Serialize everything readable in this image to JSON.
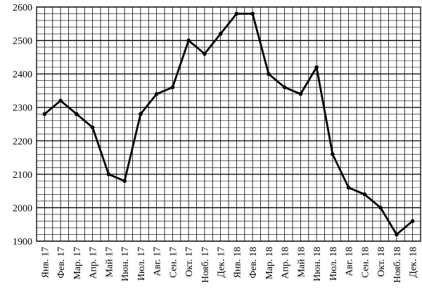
{
  "chart_data": {
    "type": "line",
    "categories": [
      "Янв. 17",
      "Фев. 17",
      "Мар. 17",
      "Апр. 17",
      "Май 17",
      "Июн. 17",
      "Июл. 17",
      "Авг. 17",
      "Сен. 17",
      "Окт. 17",
      "Нояб. 17",
      "Дек. 17",
      "Янв. 18",
      "Фев. 18",
      "Мар. 18",
      "Апр. 18",
      "Май 18",
      "Июн. 18",
      "Июл. 18",
      "Авг. 18",
      "Сен. 18",
      "Окт. 18",
      "Нояб. 18",
      "Дек. 18"
    ],
    "values": [
      2280,
      2320,
      2280,
      2240,
      2100,
      2080,
      2280,
      2340,
      2360,
      2500,
      2460,
      2520,
      2580,
      2580,
      2400,
      2360,
      2340,
      2420,
      2160,
      2060,
      2040,
      2000,
      1920,
      1960
    ],
    "color": "#000000",
    "ylim": [
      1900,
      2600
    ],
    "yticks": [
      1900,
      2000,
      2100,
      2200,
      2300,
      2400,
      2500,
      2600
    ],
    "y_minor_ticks": [
      1920,
      1940,
      1960,
      1980,
      2020,
      2040,
      2060,
      2080,
      2120,
      2140,
      2160,
      2180,
      2220,
      2240,
      2260,
      2280,
      2320,
      2340,
      2360,
      2380,
      2420,
      2440,
      2460,
      2480,
      2520,
      2540,
      2560,
      2580
    ],
    "grid": true
  }
}
